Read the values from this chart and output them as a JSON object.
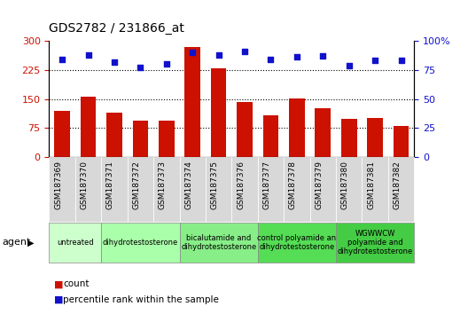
{
  "title": "GDS2782 / 231866_at",
  "samples": [
    "GSM187369",
    "GSM187370",
    "GSM187371",
    "GSM187372",
    "GSM187373",
    "GSM187374",
    "GSM187375",
    "GSM187376",
    "GSM187377",
    "GSM187378",
    "GSM187379",
    "GSM187380",
    "GSM187381",
    "GSM187382"
  ],
  "counts": [
    120,
    155,
    115,
    95,
    93,
    285,
    228,
    143,
    108,
    152,
    125,
    98,
    100,
    80
  ],
  "percentiles": [
    84,
    88,
    82,
    77,
    80,
    90,
    88,
    91,
    84,
    86,
    87,
    79,
    83,
    83
  ],
  "bar_color": "#cc1100",
  "dot_color": "#1111cc",
  "left_ylim": [
    0,
    300
  ],
  "right_ylim": [
    0,
    100
  ],
  "left_yticks": [
    0,
    75,
    150,
    225,
    300
  ],
  "right_yticks": [
    0,
    25,
    50,
    75,
    100
  ],
  "right_yticklabels": [
    "0",
    "25",
    "50",
    "75",
    "100%"
  ],
  "gridlines": [
    75,
    150,
    225
  ],
  "tick_label_color_left": "#cc1100",
  "tick_label_color_right": "#1111cc",
  "groups": [
    {
      "label": "untreated",
      "start": 0,
      "end": 1,
      "color": "#ccffcc"
    },
    {
      "label": "dihydrotestosterone",
      "start": 2,
      "end": 4,
      "color": "#aaffaa"
    },
    {
      "label": "bicalutamide and\ndihydrotestosterone",
      "start": 5,
      "end": 7,
      "color": "#88ee88"
    },
    {
      "label": "control polyamide an\ndihydrotestosterone",
      "start": 8,
      "end": 10,
      "color": "#55dd55"
    },
    {
      "label": "WGWWCW\npolyamide and\ndihydrotestosterone",
      "start": 11,
      "end": 13,
      "color": "#44cc44"
    }
  ]
}
